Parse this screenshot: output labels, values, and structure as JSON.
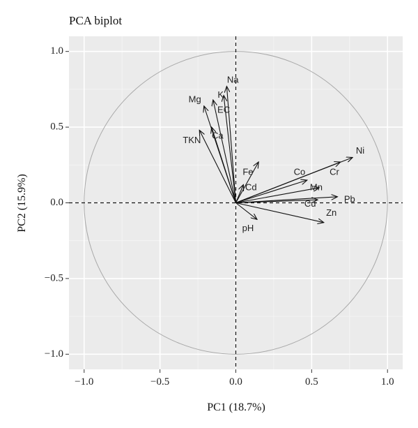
{
  "chart_data": {
    "type": "scatter",
    "title": "PCA biplot",
    "xlabel": "PC1 (18.7%)",
    "ylabel": "PC2 (15.9%)",
    "xlim": [
      -1.1,
      1.1
    ],
    "ylim": [
      -1.1,
      1.1
    ],
    "xticks": [
      -1.0,
      -0.5,
      0.0,
      0.5,
      1.0
    ],
    "xtick_labels": [
      "−1.0",
      "−0.5",
      "0.0",
      "0.5",
      "1.0"
    ],
    "yticks": [
      -1.0,
      -0.5,
      0.0,
      0.5,
      1.0
    ],
    "ytick_labels": [
      "−1.0",
      "−0.5",
      "0.0",
      "0.5",
      "1.0"
    ],
    "grid": true,
    "unit_circle": true,
    "reference_lines": [
      0,
      0
    ],
    "vectors": [
      {
        "label": "Na",
        "x": -0.06,
        "y": 0.77
      },
      {
        "label": "K",
        "x": -0.08,
        "y": 0.71
      },
      {
        "label": "EC",
        "x": -0.15,
        "y": 0.68
      },
      {
        "label": "Mg",
        "x": -0.21,
        "y": 0.64
      },
      {
        "label": "Ca",
        "x": -0.16,
        "y": 0.5
      },
      {
        "label": "TKN",
        "x": -0.24,
        "y": 0.48
      },
      {
        "label": "Fe",
        "x": 0.15,
        "y": 0.27
      },
      {
        "label": "Cd",
        "x": 0.05,
        "y": 0.12
      },
      {
        "label": "Co",
        "x": 0.47,
        "y": 0.15
      },
      {
        "label": "Cr",
        "x": 0.69,
        "y": 0.27
      },
      {
        "label": "Ni",
        "x": 0.77,
        "y": 0.3
      },
      {
        "label": "Mn",
        "x": 0.55,
        "y": 0.1
      },
      {
        "label": "Pb",
        "x": 0.67,
        "y": 0.04
      },
      {
        "label": "Cu",
        "x": 0.54,
        "y": 0.02
      },
      {
        "label": "Zn",
        "x": 0.58,
        "y": -0.13
      },
      {
        "label": "pH",
        "x": 0.14,
        "y": -0.11
      }
    ],
    "label_positions": [
      {
        "label": "Na",
        "x": -0.02,
        "y": 0.81
      },
      {
        "label": "K",
        "x": -0.1,
        "y": 0.71
      },
      {
        "label": "EC",
        "x": -0.08,
        "y": 0.61
      },
      {
        "label": "Mg",
        "x": -0.27,
        "y": 0.68
      },
      {
        "label": "Ca",
        "x": -0.12,
        "y": 0.44
      },
      {
        "label": "TKN",
        "x": -0.29,
        "y": 0.41
      },
      {
        "label": "Fe",
        "x": 0.08,
        "y": 0.2
      },
      {
        "label": "Cd",
        "x": 0.1,
        "y": 0.1
      },
      {
        "label": "Co",
        "x": 0.42,
        "y": 0.2
      },
      {
        "label": "Cr",
        "x": 0.65,
        "y": 0.2
      },
      {
        "label": "Ni",
        "x": 0.82,
        "y": 0.34
      },
      {
        "label": "Mn",
        "x": 0.53,
        "y": 0.1
      },
      {
        "label": "Pb",
        "x": 0.75,
        "y": 0.02
      },
      {
        "label": "Cu",
        "x": 0.49,
        "y": -0.01
      },
      {
        "label": "Zn",
        "x": 0.63,
        "y": -0.07
      },
      {
        "label": "pH",
        "x": 0.08,
        "y": -0.17
      }
    ]
  }
}
